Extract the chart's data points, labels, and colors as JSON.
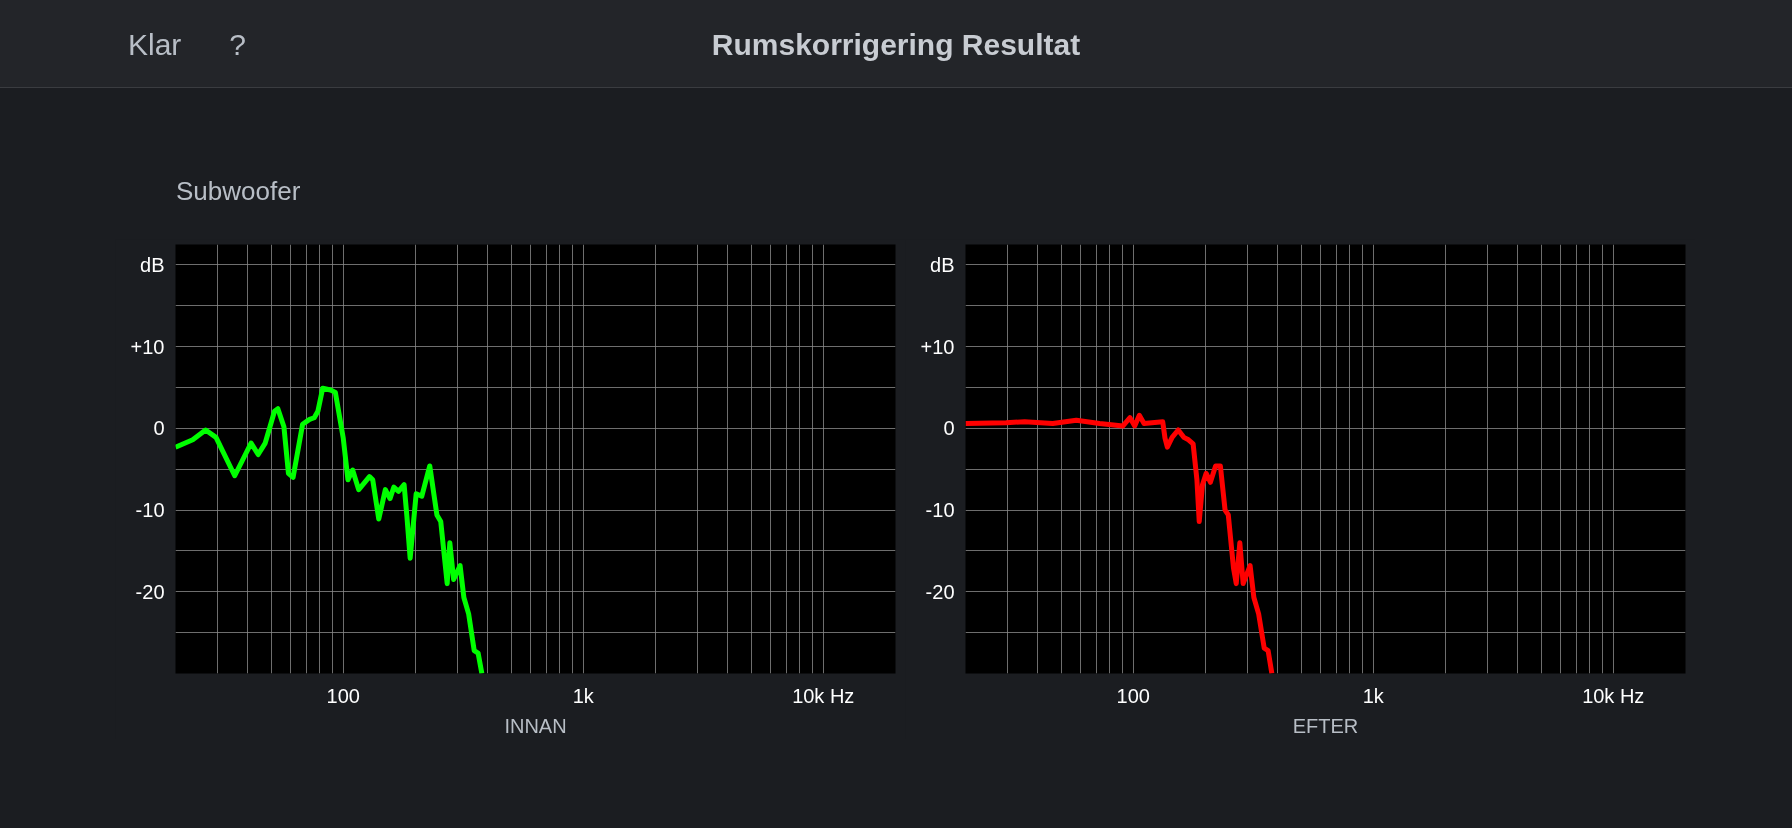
{
  "chart_data": [
    {
      "type": "line",
      "title": "Rumskorrigering Resultat",
      "subtitle": "Subwoofer",
      "xlabel": "INNAN",
      "annotations": [
        "Klar",
        "?"
      ],
      "log": "x",
      "grid": true,
      "line_style": "solid",
      "marker": "none",
      "xlim": [
        20,
        20000
      ],
      "ylim": [
        -30,
        22.5
      ],
      "xticks": [
        {
          "value": 20,
          "label": null
        },
        {
          "value": 30,
          "label": null
        },
        {
          "value": 40,
          "label": null
        },
        {
          "value": 50,
          "label": null
        },
        {
          "value": 60,
          "label": null
        },
        {
          "value": 70,
          "label": null
        },
        {
          "value": 80,
          "label": null
        },
        {
          "value": 90,
          "label": null
        },
        {
          "value": 100,
          "label": "100"
        },
        {
          "value": 200,
          "label": null
        },
        {
          "value": 300,
          "label": null
        },
        {
          "value": 400,
          "label": null
        },
        {
          "value": 500,
          "label": null
        },
        {
          "value": 600,
          "label": null
        },
        {
          "value": 700,
          "label": null
        },
        {
          "value": 800,
          "label": null
        },
        {
          "value": 900,
          "label": null
        },
        {
          "value": 1000,
          "label": "1k"
        },
        {
          "value": 2000,
          "label": null
        },
        {
          "value": 3000,
          "label": null
        },
        {
          "value": 4000,
          "label": null
        },
        {
          "value": 5000,
          "label": null
        },
        {
          "value": 6000,
          "label": null
        },
        {
          "value": 7000,
          "label": null
        },
        {
          "value": 8000,
          "label": null
        },
        {
          "value": 9000,
          "label": null
        },
        {
          "value": 10000,
          "label": "10k Hz"
        },
        {
          "value": 20000,
          "label": null
        }
      ],
      "yticks": [
        {
          "value": 20,
          "label": "dB"
        },
        {
          "value": 15,
          "label": null
        },
        {
          "value": 10,
          "label": "+10"
        },
        {
          "value": 5,
          "label": null
        },
        0,
        {
          "value": -5,
          "label": null
        },
        -10,
        {
          "value": -15,
          "label": null
        },
        -20,
        {
          "value": -25,
          "label": null
        }
      ],
      "x": [
        20,
        23.6,
        26.7,
        29.5,
        35.3,
        41.3,
        44.2,
        47.3,
        51.7,
        53.4,
        56.6,
        59.1,
        61.8,
        67.7,
        72.4,
        75.7,
        78.4,
        82.1,
        88.6,
        92.7,
        100,
        104.6,
        109.4,
        116,
        128.6,
        132.7,
        140.6,
        149.8,
        156.6,
        162.4,
        169.9,
        179.3,
        184.2,
        190,
        201.3,
        212.5,
        229.3,
        245.6,
        254.8,
        271,
        278,
        288.3,
        306.8,
        318.1,
        333,
        351.3,
        364.7,
        378
      ],
      "series": [
        {
          "color": "#00ff00",
          "values": [
            -2.3,
            -1.4,
            -0.2,
            -1.1,
            -5.8,
            -1.8,
            -3.2,
            -1.8,
            2.1,
            2.4,
            0.2,
            -5.5,
            -6.0,
            0.5,
            1.1,
            1.3,
            2.1,
            4.9,
            4.7,
            4.4,
            -1.2,
            -6.3,
            -5.1,
            -7.5,
            -5.9,
            -6.3,
            -11.1,
            -7.5,
            -8.6,
            -7.2,
            -7.7,
            -6.9,
            -10.8,
            -15.9,
            -8.0,
            -8.3,
            -4.6,
            -10.6,
            -11.4,
            -19.0,
            -14.0,
            -18.5,
            -16.8,
            -20.7,
            -22.7,
            -27.2,
            -27.5,
            -30
          ]
        }
      ]
    },
    {
      "type": "line",
      "xlabel": "EFTER",
      "log": "x",
      "grid": true,
      "line_style": "solid",
      "marker": "none",
      "xlim": [
        20,
        20000
      ],
      "ylim": [
        -30,
        22.5
      ],
      "xticks": [
        {
          "value": 20,
          "label": null
        },
        {
          "value": 30,
          "label": null
        },
        {
          "value": 40,
          "label": null
        },
        {
          "value": 50,
          "label": null
        },
        {
          "value": 60,
          "label": null
        },
        {
          "value": 70,
          "label": null
        },
        {
          "value": 80,
          "label": null
        },
        {
          "value": 90,
          "label": null
        },
        {
          "value": 100,
          "label": "100"
        },
        {
          "value": 200,
          "label": null
        },
        {
          "value": 300,
          "label": null
        },
        {
          "value": 400,
          "label": null
        },
        {
          "value": 500,
          "label": null
        },
        {
          "value": 600,
          "label": null
        },
        {
          "value": 700,
          "label": null
        },
        {
          "value": 800,
          "label": null
        },
        {
          "value": 900,
          "label": null
        },
        {
          "value": 1000,
          "label": "1k"
        },
        {
          "value": 2000,
          "label": null
        },
        {
          "value": 3000,
          "label": null
        },
        {
          "value": 4000,
          "label": null
        },
        {
          "value": 5000,
          "label": null
        },
        {
          "value": 6000,
          "label": null
        },
        {
          "value": 7000,
          "label": null
        },
        {
          "value": 8000,
          "label": null
        },
        {
          "value": 9000,
          "label": null
        },
        {
          "value": 10000,
          "label": "10k Hz"
        },
        {
          "value": 20000,
          "label": null
        }
      ],
      "yticks": [
        {
          "value": 20,
          "label": "dB"
        },
        {
          "value": 15,
          "label": null
        },
        {
          "value": 10,
          "label": "+10"
        },
        {
          "value": 5,
          "label": null
        },
        0,
        {
          "value": -5,
          "label": null
        },
        -10,
        {
          "value": -15,
          "label": null
        },
        -20,
        {
          "value": -25,
          "label": null
        }
      ],
      "x": [
        20,
        29.5,
        35.3,
        46.2,
        57.9,
        72.4,
        90.6,
        96.9,
        101.4,
        106,
        110.9,
        132.7,
        135.6,
        138.7,
        145.2,
        153.9,
        162.4,
        169.9,
        177.6,
        184.2,
        188.3,
        194.3,
        201.3,
        209.6,
        220.3,
        230.7,
        241.3,
        248.9,
        261.6,
        268.6,
        278,
        287,
        306.8,
        318.1,
        333,
        351.3,
        364.7,
        378
      ],
      "series": [
        {
          "color": "#ff0000",
          "values": [
            0.6,
            0.7,
            0.8,
            0.6,
            1.0,
            0.6,
            0.3,
            1.3,
            0.3,
            1.6,
            0.6,
            0.8,
            -1.2,
            -2.3,
            -1.1,
            -0.2,
            -1.1,
            -1.4,
            -1.9,
            -6.3,
            -11.4,
            -6.9,
            -5.5,
            -6.6,
            -4.6,
            -4.6,
            -10.0,
            -10.6,
            -17.1,
            -19.0,
            -14.0,
            -19.0,
            -16.8,
            -20.7,
            -22.7,
            -26.9,
            -27.2,
            -30
          ]
        }
      ]
    }
  ]
}
